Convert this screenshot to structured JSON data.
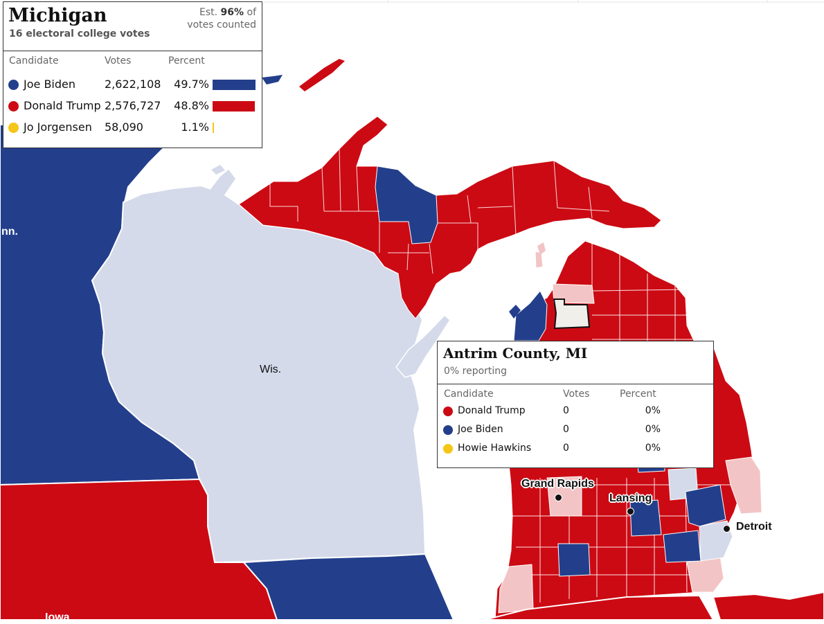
{
  "colors": {
    "dem": "#233f8c",
    "rep": "#cc0a13",
    "lean_rep": "#f3c4c5",
    "neutral": "#d4daea",
    "no_results": "#f0efea",
    "third": "#f5c518"
  },
  "map_labels": {
    "minn": "nn.",
    "wis": "Wis.",
    "iowa": "Iowa"
  },
  "cities": [
    {
      "name": "Grand Rapids"
    },
    {
      "name": "Lansing"
    },
    {
      "name": "Detroit"
    }
  ],
  "state_panel": {
    "title": "Michigan",
    "subtitle": "16 electoral college votes",
    "est_prefix": "Est.",
    "est_value": "96%",
    "est_mid": "of",
    "est_suffix": "votes counted",
    "headers": {
      "candidate": "Candidate",
      "votes": "Votes",
      "percent": "Percent"
    },
    "rows": [
      {
        "name": "Joe Biden",
        "votes": "2,622,108",
        "percent": "49.7%",
        "share": 49.7,
        "color": "#233f8c"
      },
      {
        "name": "Donald Trump",
        "votes": "2,576,727",
        "percent": "48.8%",
        "share": 48.8,
        "color": "#cc0a13"
      },
      {
        "name": "Jo Jorgensen",
        "votes": "58,090",
        "percent": "1.1%",
        "share": 1.1,
        "color": "#f5c518"
      }
    ]
  },
  "county_panel": {
    "title": "Antrim County, MI",
    "subtitle": "0% reporting",
    "headers": {
      "candidate": "Candidate",
      "votes": "Votes",
      "percent": "Percent"
    },
    "rows": [
      {
        "name": "Donald Trump",
        "votes": "0",
        "percent": "0%",
        "color": "#cc0a13"
      },
      {
        "name": "Joe Biden",
        "votes": "0",
        "percent": "0%",
        "color": "#233f8c"
      },
      {
        "name": "Howie Hawkins",
        "votes": "0",
        "percent": "0%",
        "color": "#f5c518"
      }
    ]
  }
}
